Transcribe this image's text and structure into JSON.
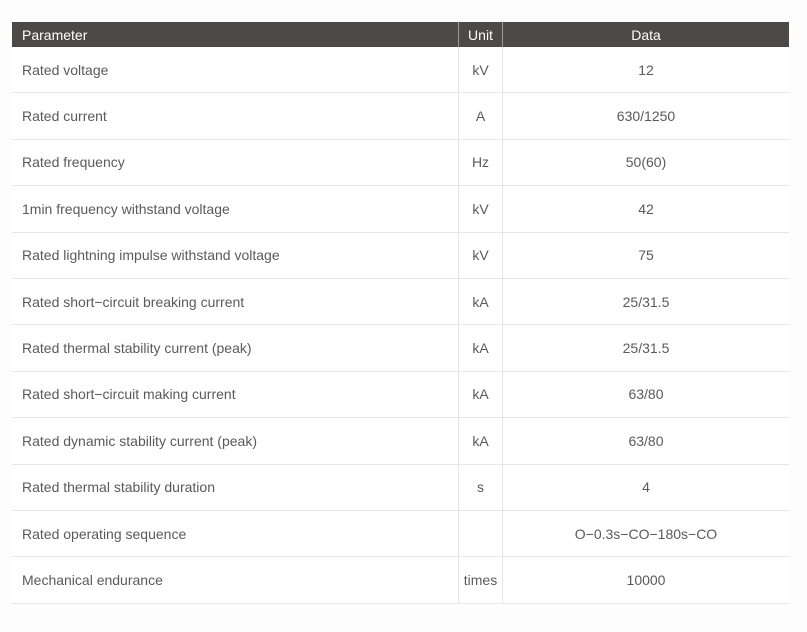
{
  "table": {
    "headers": [
      "Parameter",
      "Unit",
      "Data"
    ],
    "rows": [
      {
        "parameter": "Rated voltage",
        "unit": "kV",
        "data": "12"
      },
      {
        "parameter": "Rated current",
        "unit": "A",
        "data": "630/1250"
      },
      {
        "parameter": "Rated frequency",
        "unit": "Hz",
        "data": "50(60)"
      },
      {
        "parameter": "1min frequency withstand voltage",
        "unit": "kV",
        "data": "42"
      },
      {
        "parameter": "Rated lightning impulse withstand voltage",
        "unit": "kV",
        "data": "75"
      },
      {
        "parameter": "Rated short−circuit breaking current",
        "unit": "kA",
        "data": "25/31.5"
      },
      {
        "parameter": "Rated thermal stability current (peak)",
        "unit": "kA",
        "data": "25/31.5"
      },
      {
        "parameter": "Rated short−circuit making current",
        "unit": "kA",
        "data": "63/80"
      },
      {
        "parameter": "Rated dynamic stability current (peak)",
        "unit": "kA",
        "data": "63/80"
      },
      {
        "parameter": "Rated thermal stability duration",
        "unit": "s",
        "data": "4"
      },
      {
        "parameter": "Rated operating sequence",
        "unit": "",
        "data": "O−0.3s−CO−180s−CO"
      },
      {
        "parameter": "Mechanical endurance",
        "unit": "times",
        "data": "10000"
      }
    ]
  },
  "colors": {
    "header_background": "#4b4a46",
    "header_text": "#ffffff",
    "body_text": "#595a5c",
    "divider": "#e7e7e6",
    "page_background": "#fdfdfd"
  }
}
